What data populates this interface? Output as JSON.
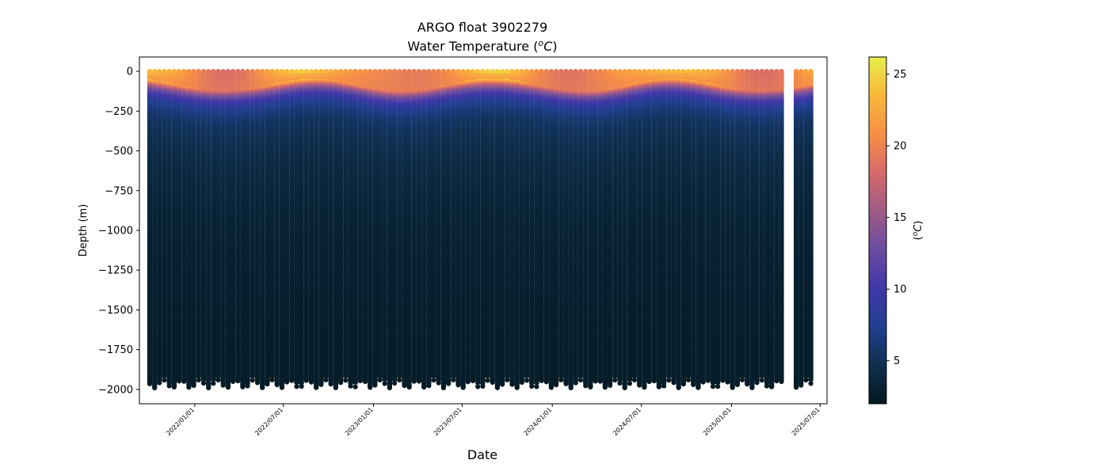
{
  "chart_data": {
    "type": "scatter",
    "title": "ARGO float 3902279",
    "subtitle_prefix": "Water Temperature (",
    "subtitle_unit_base": "o",
    "subtitle_unit_letter": "C",
    "subtitle_suffix": ")",
    "xlabel": "Date",
    "ylabel": "Depth (m)",
    "colorbar_label_prefix": "(",
    "colorbar_label_base": "o",
    "colorbar_label_letter": "C",
    "colorbar_label_suffix": ")",
    "x_range": [
      "2021-09-10",
      "2025-07-15"
    ],
    "ylim": [
      -2090,
      90
    ],
    "y_ticks": [
      0,
      -250,
      -500,
      -750,
      -1000,
      -1250,
      -1500,
      -1750,
      -2000
    ],
    "x_ticks": [
      "2022/01/01",
      "2022/07/01",
      "2023/01/01",
      "2023/07/01",
      "2024/01/01",
      "2024/07/01",
      "2025/01/01",
      "2025/07/01"
    ],
    "colorbar": {
      "range": [
        2,
        26.2
      ],
      "ticks": [
        5,
        10,
        15,
        20,
        25
      ],
      "colormap": [
        "#041820",
        "#0e2f4f",
        "#203f8f",
        "#3f37a8",
        "#6a4ca0",
        "#a05a86",
        "#d66a6a",
        "#f78f46",
        "#f9b73a",
        "#e8ee4c"
      ]
    },
    "profiles": {
      "first_date": "2021-10-01",
      "last_date": "2025-06-14",
      "interval_days": 10,
      "gap_after_date": "2025-04-14",
      "gap_resume_date": "2025-05-05",
      "max_depth_range": [
        -1940,
        -1990
      ]
    },
    "grid": false,
    "legend": "none",
    "colorbar_position": "right"
  }
}
